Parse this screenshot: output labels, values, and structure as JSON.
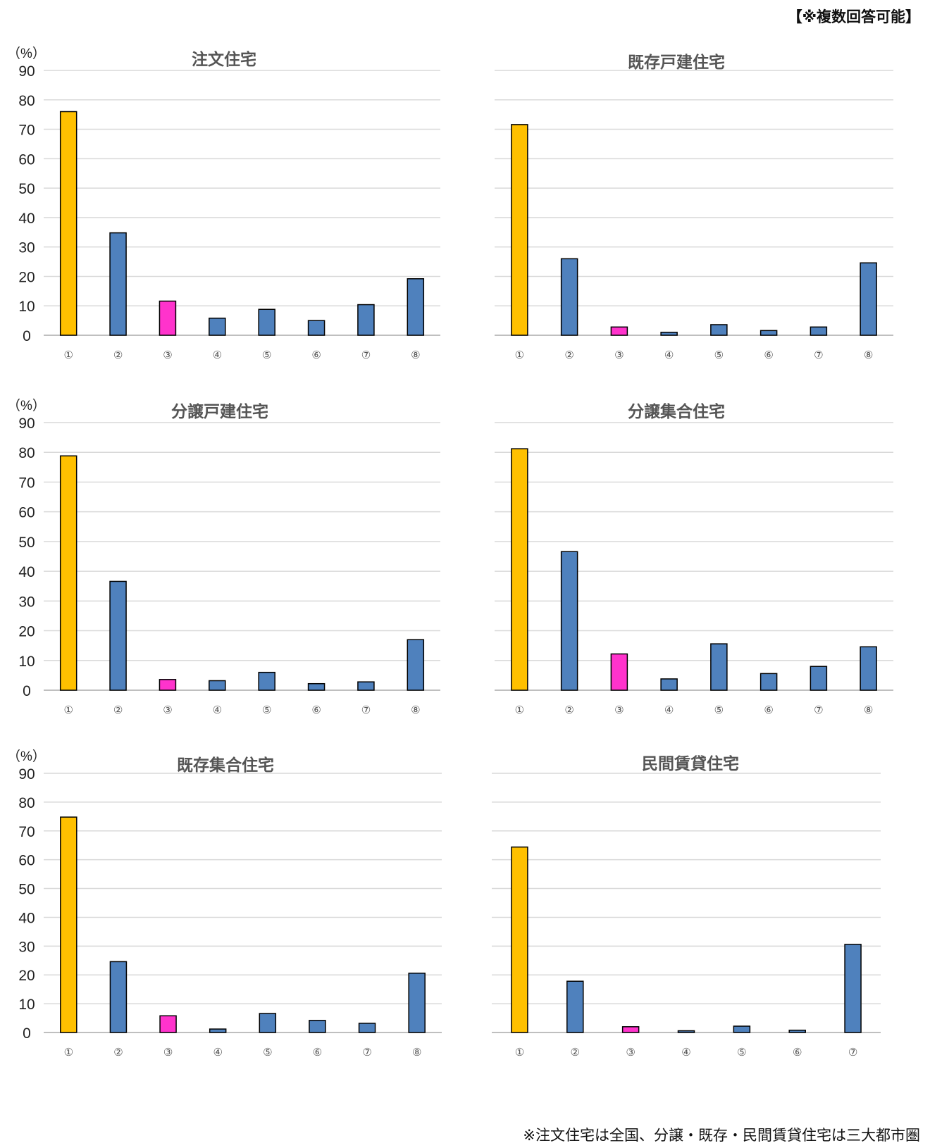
{
  "header_note": "【※複数回答可能】",
  "footer_note": "※注文住宅は全国、分譲・既存・民間賃貸住宅は三大都市圏",
  "colors": {
    "highlight": "#FFC000",
    "accent": "#FF33CC",
    "default": "#4F81BD"
  },
  "chart_data": [
    {
      "type": "bar",
      "title": "注文住宅",
      "unit": "（%）",
      "ylim": [
        0,
        90
      ],
      "yticks": [
        0,
        10,
        20,
        30,
        40,
        50,
        60,
        70,
        80,
        90
      ],
      "show_yaxis": true,
      "categories": [
        "①",
        "②",
        "③",
        "④",
        "⑤",
        "⑥",
        "⑦",
        "⑧"
      ],
      "values": [
        76.0,
        34.8,
        11.6,
        5.8,
        8.8,
        5.0,
        10.4,
        19.2
      ],
      "colors": [
        "highlight",
        "default",
        "accent",
        "default",
        "default",
        "default",
        "default",
        "default"
      ],
      "grid": true
    },
    {
      "type": "bar",
      "title": "既存戸建住宅",
      "unit": "",
      "ylim": [
        0,
        90
      ],
      "yticks": [],
      "show_yaxis": false,
      "categories": [
        "①",
        "②",
        "③",
        "④",
        "⑤",
        "⑥",
        "⑦",
        "⑧"
      ],
      "values": [
        71.6,
        26.0,
        2.8,
        1.0,
        3.6,
        1.6,
        2.8,
        24.6
      ],
      "colors": [
        "highlight",
        "default",
        "accent",
        "default",
        "default",
        "default",
        "default",
        "default"
      ],
      "grid": true
    },
    {
      "type": "bar",
      "title": "分譲戸建住宅",
      "unit": "（%）",
      "ylim": [
        0,
        90
      ],
      "yticks": [
        0,
        10,
        20,
        30,
        40,
        50,
        60,
        70,
        80,
        90
      ],
      "show_yaxis": true,
      "categories": [
        "①",
        "②",
        "③",
        "④",
        "⑤",
        "⑥",
        "⑦",
        "⑧"
      ],
      "values": [
        78.8,
        36.6,
        3.6,
        3.2,
        6.0,
        2.2,
        2.8,
        17.0
      ],
      "colors": [
        "highlight",
        "default",
        "accent",
        "default",
        "default",
        "default",
        "default",
        "default"
      ],
      "grid": true
    },
    {
      "type": "bar",
      "title": "分譲集合住宅",
      "unit": "",
      "ylim": [
        0,
        90
      ],
      "yticks": [],
      "show_yaxis": false,
      "categories": [
        "①",
        "②",
        "③",
        "④",
        "⑤",
        "⑥",
        "⑦",
        "⑧"
      ],
      "values": [
        81.2,
        46.6,
        12.2,
        3.8,
        15.6,
        5.6,
        8.0,
        14.6
      ],
      "colors": [
        "highlight",
        "default",
        "accent",
        "default",
        "default",
        "default",
        "default",
        "default"
      ],
      "grid": true
    },
    {
      "type": "bar",
      "title": "既存集合住宅",
      "unit": "（%）",
      "ylim": [
        0,
        90
      ],
      "yticks": [
        0,
        10,
        20,
        30,
        40,
        50,
        60,
        70,
        80,
        90
      ],
      "show_yaxis": true,
      "categories": [
        "①",
        "②",
        "③",
        "④",
        "⑤",
        "⑥",
        "⑦",
        "⑧"
      ],
      "values": [
        74.8,
        24.6,
        5.8,
        1.2,
        6.6,
        4.2,
        3.2,
        20.6
      ],
      "colors": [
        "highlight",
        "default",
        "accent",
        "default",
        "default",
        "default",
        "default",
        "default"
      ],
      "grid": true
    },
    {
      "type": "bar",
      "title": "民間賃貸住宅",
      "unit": "",
      "ylim": [
        0,
        90
      ],
      "yticks": [],
      "show_yaxis": false,
      "categories": [
        "①",
        "②",
        "③",
        "④",
        "⑤",
        "⑥",
        "⑦"
      ],
      "values": [
        64.4,
        17.8,
        2.0,
        0.6,
        2.2,
        0.8,
        30.6
      ],
      "colors": [
        "highlight",
        "default",
        "accent",
        "default",
        "default",
        "default",
        "default"
      ],
      "grid": true
    }
  ]
}
